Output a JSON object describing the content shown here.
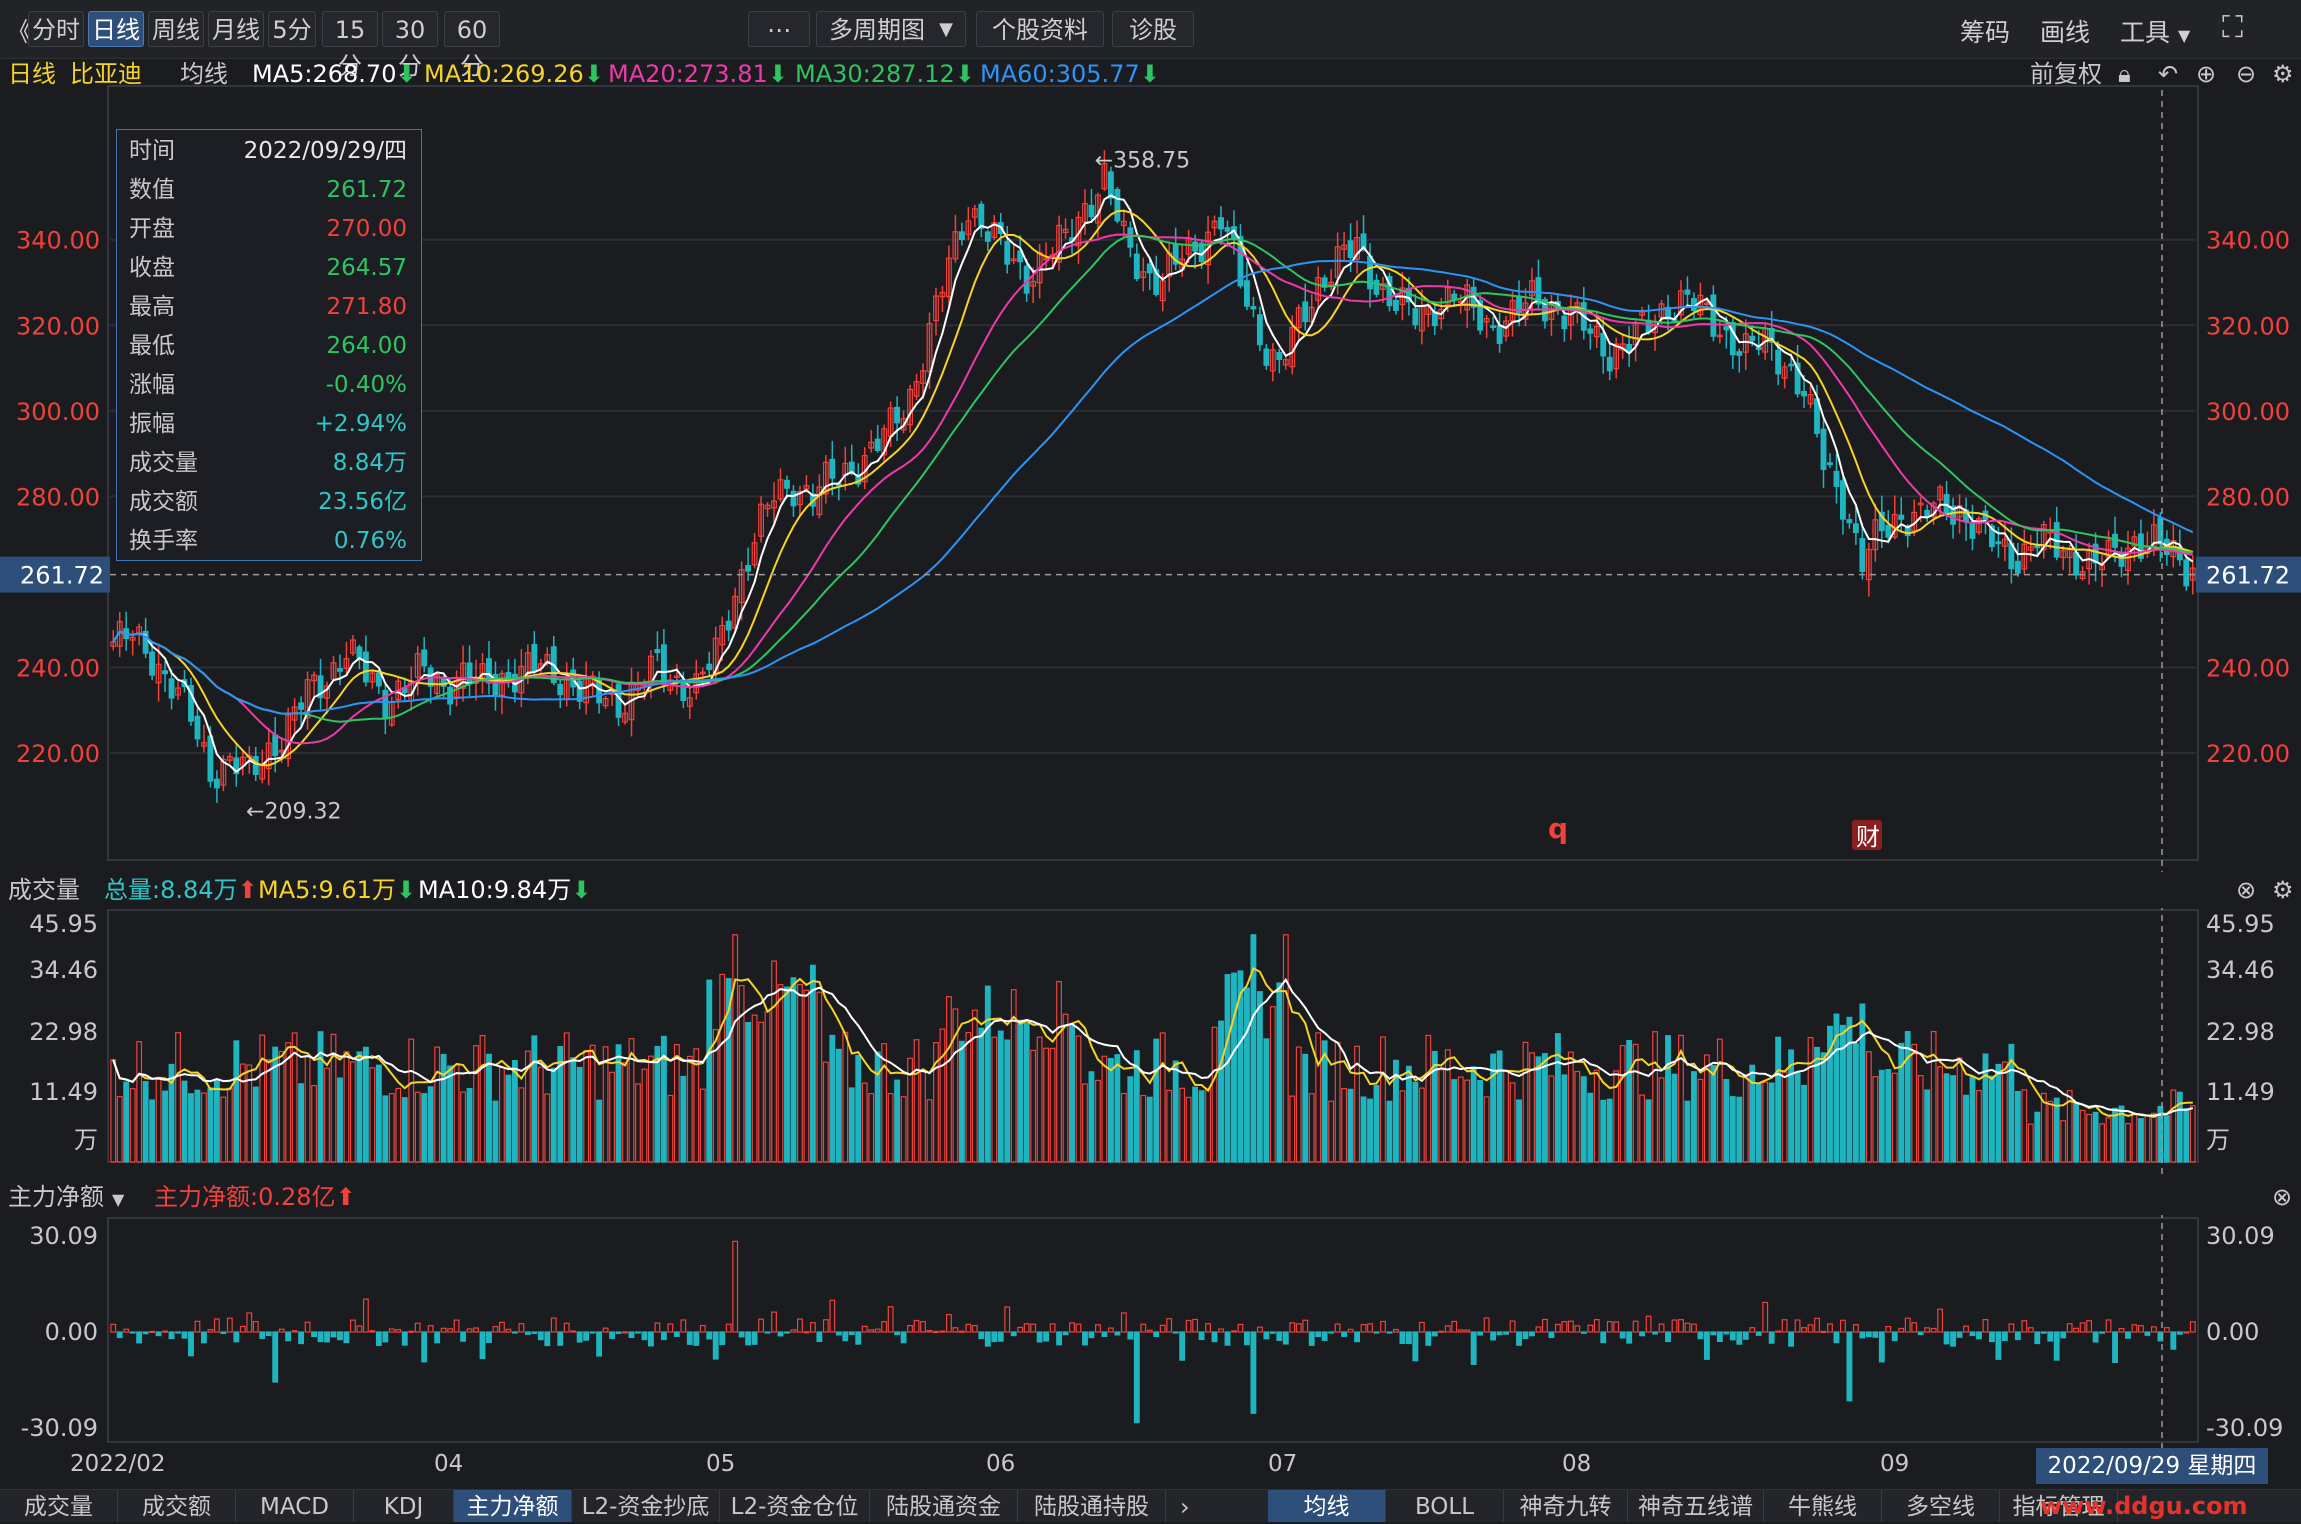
{
  "toolbar": {
    "back_glyph": "《",
    "periods": [
      "分时",
      "日线",
      "周线",
      "月线",
      "5分",
      "15分",
      "30分",
      "60分"
    ],
    "active_period": "日线",
    "more_label": "⋯",
    "multi_period": "多周期图",
    "stock_info": "个股资料",
    "diagnose": "诊股",
    "right": [
      "筹码",
      "画线",
      "工具"
    ],
    "fullscreen_glyph": "⛶"
  },
  "ma_legend": {
    "period": "日线",
    "stock": "比亚迪",
    "label": "均线",
    "ma5": "MA5:268.70",
    "ma10": "MA10:269.26",
    "ma20": "MA20:273.81",
    "ma30": "MA30:287.12",
    "ma60": "MA60:305.77",
    "adjust": "前复权",
    "colors": {
      "ma5": "#ffffff",
      "ma10": "#f5d327",
      "ma20": "#ec3ba8",
      "ma30": "#2ec561",
      "ma60": "#2d94f5"
    }
  },
  "tooltip": {
    "rows": [
      {
        "k": "时间",
        "v": "2022/09/29/四",
        "c": "#e8e8e8"
      },
      {
        "k": "数值",
        "v": "261.72",
        "c": "#2ec561"
      },
      {
        "k": "开盘",
        "v": "270.00",
        "c": "#f0413a"
      },
      {
        "k": "收盘",
        "v": "264.57",
        "c": "#2ec561"
      },
      {
        "k": "最高",
        "v": "271.80",
        "c": "#f0413a"
      },
      {
        "k": "最低",
        "v": "264.00",
        "c": "#2ec561"
      },
      {
        "k": "涨幅",
        "v": "-0.40%",
        "c": "#2ec561"
      },
      {
        "k": "振幅",
        "v": "+2.94%",
        "c": "#2ec8c8"
      },
      {
        "k": "成交量",
        "v": "8.84万",
        "c": "#2ec8c8"
      },
      {
        "k": "成交额",
        "v": "23.56亿",
        "c": "#2ec8c8"
      },
      {
        "k": "换手率",
        "v": "0.76%",
        "c": "#2ec8c8"
      }
    ]
  },
  "price_panel": {
    "y_ticks": [
      340,
      320,
      300,
      280,
      240,
      220
    ],
    "y_tick_labels": [
      "340.00",
      "320.00",
      "300.00",
      "280.00",
      "240.00",
      "220.00"
    ],
    "crosshair_value": "261.72",
    "crosshair_price": 261.72,
    "high_mark": "←358.75",
    "low_mark": "←209.32",
    "q_marker": "q",
    "cai_marker": "财"
  },
  "volume_panel": {
    "title": "成交量",
    "total": "总量:8.84万",
    "ma5": "MA5:9.61万",
    "ma10": "MA10:9.84万",
    "y_ticks": [
      "45.95",
      "34.46",
      "22.98",
      "11.49",
      "万"
    ]
  },
  "flow_panel": {
    "title": "主力净额",
    "net": "主力净额:0.28亿",
    "y_ticks": [
      "30.09",
      "0.00",
      "-30.09"
    ]
  },
  "x_axis": {
    "labels": [
      "2022/02",
      "04",
      "05",
      "06",
      "07",
      "08",
      "09"
    ],
    "date_badge": "2022/09/29 星期四"
  },
  "bottom_tabs": {
    "left": [
      "成交量",
      "成交额",
      "MACD",
      "KDJ",
      "主力净额",
      "L2-资金抄底",
      "L2-资金仓位",
      "陆股通资金",
      "陆股通持股"
    ],
    "active_left": "主力净额",
    "right": [
      "均线",
      "BOLL",
      "神奇九转",
      "神奇五线谱",
      "牛熊线",
      "多空线",
      "指标管理"
    ],
    "active_right": "均线",
    "watermark": "www.ddgu.com"
  },
  "chart_data": {
    "type": "candlestick",
    "price_range": [
      195,
      375
    ],
    "highest": 358.75,
    "lowest": 209.32,
    "volume_max": 45.95,
    "flow_range": [
      -30.09,
      30.09
    ],
    "keypoints": [
      [
        0,
        246
      ],
      [
        3,
        247
      ],
      [
        6,
        243
      ],
      [
        9,
        236
      ],
      [
        12,
        228
      ],
      [
        15,
        216
      ],
      [
        18,
        218
      ],
      [
        21,
        215
      ],
      [
        24,
        221
      ],
      [
        27,
        226
      ],
      [
        30,
        234
      ],
      [
        33,
        238
      ],
      [
        36,
        244
      ],
      [
        39,
        238
      ],
      [
        42,
        233
      ],
      [
        45,
        236
      ],
      [
        48,
        239
      ],
      [
        51,
        236
      ],
      [
        54,
        238
      ],
      [
        57,
        236
      ],
      [
        60,
        238
      ],
      [
        63,
        239
      ],
      [
        66,
        240
      ],
      [
        69,
        238
      ],
      [
        72,
        235
      ],
      [
        75,
        233
      ],
      [
        78,
        232
      ],
      [
        81,
        236
      ],
      [
        84,
        240
      ],
      [
        87,
        237
      ],
      [
        90,
        235
      ],
      [
        93,
        243
      ],
      [
        96,
        258
      ],
      [
        99,
        270
      ],
      [
        102,
        280
      ],
      [
        105,
        283
      ],
      [
        108,
        280
      ],
      [
        111,
        284
      ],
      [
        114,
        287
      ],
      [
        117,
        290
      ],
      [
        120,
        296
      ],
      [
        123,
        304
      ],
      [
        126,
        318
      ],
      [
        129,
        334
      ],
      [
        132,
        348
      ],
      [
        135,
        342
      ],
      [
        138,
        336
      ],
      [
        141,
        332
      ],
      [
        144,
        336
      ],
      [
        147,
        340
      ],
      [
        150,
        348
      ],
      [
        153,
        354
      ],
      [
        156,
        340
      ],
      [
        159,
        333
      ],
      [
        162,
        330
      ],
      [
        165,
        336
      ],
      [
        168,
        340
      ],
      [
        171,
        345
      ],
      [
        174,
        330
      ],
      [
        177,
        318
      ],
      [
        180,
        310
      ],
      [
        183,
        320
      ],
      [
        186,
        330
      ],
      [
        189,
        335
      ],
      [
        192,
        338
      ],
      [
        195,
        330
      ],
      [
        198,
        325
      ],
      [
        201,
        322
      ],
      [
        204,
        325
      ],
      [
        207,
        327
      ],
      [
        210,
        323
      ],
      [
        213,
        320
      ],
      [
        216,
        322
      ],
      [
        219,
        326
      ],
      [
        222,
        325
      ],
      [
        225,
        322
      ],
      [
        228,
        318
      ],
      [
        231,
        314
      ],
      [
        234,
        316
      ],
      [
        237,
        320
      ],
      [
        240,
        325
      ],
      [
        243,
        326
      ],
      [
        246,
        322
      ],
      [
        249,
        318
      ],
      [
        252,
        314
      ],
      [
        255,
        316
      ],
      [
        258,
        312
      ],
      [
        261,
        304
      ],
      [
        264,
        288
      ],
      [
        267,
        280
      ],
      [
        270,
        264
      ],
      [
        273,
        272
      ],
      [
        276,
        276
      ],
      [
        279,
        275
      ],
      [
        282,
        278
      ],
      [
        285,
        277
      ],
      [
        288,
        272
      ],
      [
        291,
        268
      ],
      [
        294,
        266
      ],
      [
        297,
        270
      ],
      [
        300,
        268
      ],
      [
        303,
        266
      ],
      [
        306,
        264
      ],
      [
        309,
        266
      ],
      [
        312,
        270
      ],
      [
        315,
        269
      ],
      [
        318,
        266
      ],
      [
        320,
        264
      ]
    ],
    "notes": "Daily candles Feb–Sep 2022 for 比亚迪; close path approximated from the rendering. Moving averages MA5/10/20/30/60 computed from the close series."
  }
}
